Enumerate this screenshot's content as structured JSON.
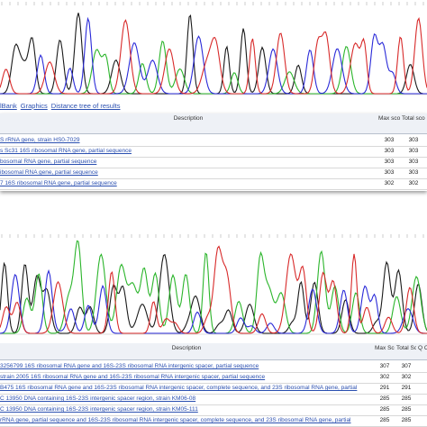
{
  "top": {
    "links": [
      "lBank",
      "Graphics",
      "Distance tree of results"
    ],
    "table": {
      "header": [
        "Description",
        "Max score",
        "Total score"
      ],
      "rows": [
        [
          "S rRNA gene, strain HS0-7029",
          303,
          303
        ],
        [
          "s Sc31 16S ribosomal RNA gene, partial sequence",
          303,
          303
        ],
        [
          "bosomal RNA gene, partial sequence",
          303,
          303
        ],
        [
          "ibosomal RNA gene, partial sequence",
          303,
          303
        ],
        [
          "7 16S ribosomal RNA gene, partial sequence",
          302,
          302
        ]
      ]
    }
  },
  "bottom": {
    "table": {
      "header": [
        "Description",
        "Max Score",
        "Total Score",
        "Q C"
      ],
      "rows": [
        [
          "3256799 16S ribosomal RNA gene and 16S-23S ribosomal RNA intergenic spacer, partial sequence",
          307,
          307
        ],
        [
          "strain 2005 16S ribosomal RNA gene and 16S-23S ribosomal RNA intergenic spacer, partial sequence",
          302,
          302
        ],
        [
          "B475 16S ribosomal RNA gene and 16S-23S ribosomal RNA intergenic spacer, complete sequence, and 23S ribosomal RNA gene, partial",
          291,
          291
        ],
        [
          "C 13950 DNA containing 16S-23S intergenic spacer region, strain KM06-08",
          285,
          285
        ],
        [
          "C 13950 DNA containing 16S-23S intergenic spacer region, strain KM05-111",
          285,
          285
        ],
        [
          "rRNA gene, partial sequence and 16S-23S ribosomal RNA intergenic spacer, complete sequence, and 23S ribosomal RNA gene, partial",
          285,
          285
        ]
      ]
    }
  }
}
